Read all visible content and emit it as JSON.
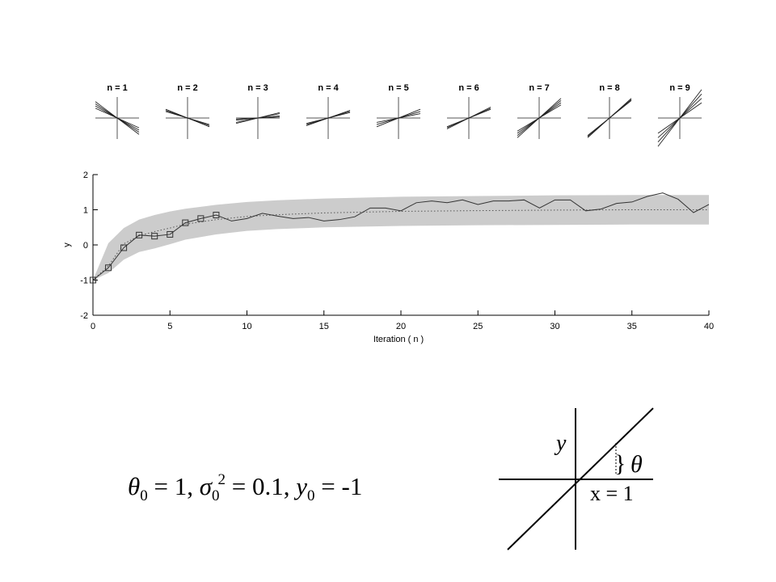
{
  "chart_data": {
    "type": "line",
    "xlabel": "Iteration ( n )",
    "ylabel": "y",
    "xlim": [
      0,
      40
    ],
    "ylim": [
      -2,
      2
    ],
    "xticks": [
      0,
      5,
      10,
      15,
      20,
      25,
      30,
      35,
      40
    ],
    "yticks": [
      -2,
      -1,
      0,
      1,
      2
    ],
    "band": {
      "color": "#cccccc",
      "x": [
        0,
        1,
        2,
        3,
        4,
        5,
        6,
        8,
        10,
        12,
        15,
        20,
        25,
        30,
        35,
        40
      ],
      "upper": [
        -1,
        0.05,
        0.48,
        0.72,
        0.85,
        0.95,
        1.03,
        1.14,
        1.22,
        1.27,
        1.32,
        1.37,
        1.39,
        1.41,
        1.42,
        1.42
      ],
      "lower": [
        -1,
        -0.8,
        -0.42,
        -0.2,
        -0.1,
        0.02,
        0.15,
        0.3,
        0.4,
        0.45,
        0.5,
        0.54,
        0.56,
        0.57,
        0.58,
        0.58
      ]
    },
    "series": [
      {
        "color": "#555555",
        "style": "dotted",
        "x": [
          0,
          1,
          2,
          3,
          4,
          5,
          6,
          8,
          10,
          12,
          15,
          20,
          25,
          30,
          35,
          40
        ],
        "values": [
          -1,
          -0.6,
          0.03,
          0.26,
          0.38,
          0.48,
          0.59,
          0.72,
          0.81,
          0.86,
          0.91,
          0.955,
          0.975,
          0.99,
          1,
          1
        ]
      },
      {
        "color": "#333333",
        "style": "solid",
        "x": [
          0,
          1,
          2,
          3,
          4,
          5,
          6,
          7,
          8,
          9,
          10,
          11,
          12,
          13,
          14,
          15,
          16,
          17,
          18,
          19,
          20,
          21,
          22,
          23,
          24,
          25,
          26,
          27,
          28,
          29,
          30,
          31,
          32,
          33,
          34,
          35,
          36,
          37,
          38,
          39,
          40
        ],
        "values": [
          -1,
          -0.65,
          -0.08,
          0.28,
          0.25,
          0.3,
          0.63,
          0.75,
          0.85,
          0.68,
          0.75,
          0.9,
          0.82,
          0.75,
          0.78,
          0.68,
          0.72,
          0.8,
          1.05,
          1.05,
          0.97,
          1.2,
          1.25,
          1.2,
          1.28,
          1.15,
          1.25,
          1.25,
          1.28,
          1.05,
          1.28,
          1.28,
          0.97,
          1.02,
          1.18,
          1.22,
          1.38,
          1.48,
          1.3,
          0.92,
          1.15
        ]
      },
      {
        "color": "#333333",
        "style": "squares",
        "x": [
          0,
          1,
          2,
          3,
          4,
          5,
          6,
          7,
          8
        ],
        "values": [
          -1,
          -0.65,
          -0.08,
          0.28,
          0.25,
          0.3,
          0.63,
          0.75,
          0.85
        ]
      }
    ]
  },
  "panels": [
    {
      "title": "n = 1",
      "slopes": [
        -0.45,
        -0.55,
        -0.65,
        -0.75
      ]
    },
    {
      "title": "n = 2",
      "slopes": [
        -0.3,
        -0.35,
        -0.4
      ]
    },
    {
      "title": "n = 3",
      "slopes": [
        0.05,
        0.1,
        0.2,
        0.25
      ]
    },
    {
      "title": "n = 4",
      "slopes": [
        0.25,
        0.3,
        0.35
      ]
    },
    {
      "title": "n = 5",
      "slopes": [
        0.2,
        0.3,
        0.4
      ]
    },
    {
      "title": "n = 6",
      "slopes": [
        0.4,
        0.45,
        0.5
      ]
    },
    {
      "title": "n = 7",
      "slopes": [
        0.6,
        0.7,
        0.8,
        0.9
      ]
    },
    {
      "title": "n = 8",
      "slopes": [
        0.8,
        0.85,
        0.9
      ]
    },
    {
      "title": "n = 9",
      "slopes": [
        0.7,
        0.9,
        1.1,
        1.3
      ]
    }
  ],
  "equation": [
    "θ",
    "0",
    " = 1, ",
    "σ",
    "0",
    "2",
    " = 0.1, ",
    "y",
    "0",
    " = -1"
  ],
  "diagram": {
    "y_label": "y",
    "angle_label": "θ",
    "x_label": "x = 1"
  }
}
